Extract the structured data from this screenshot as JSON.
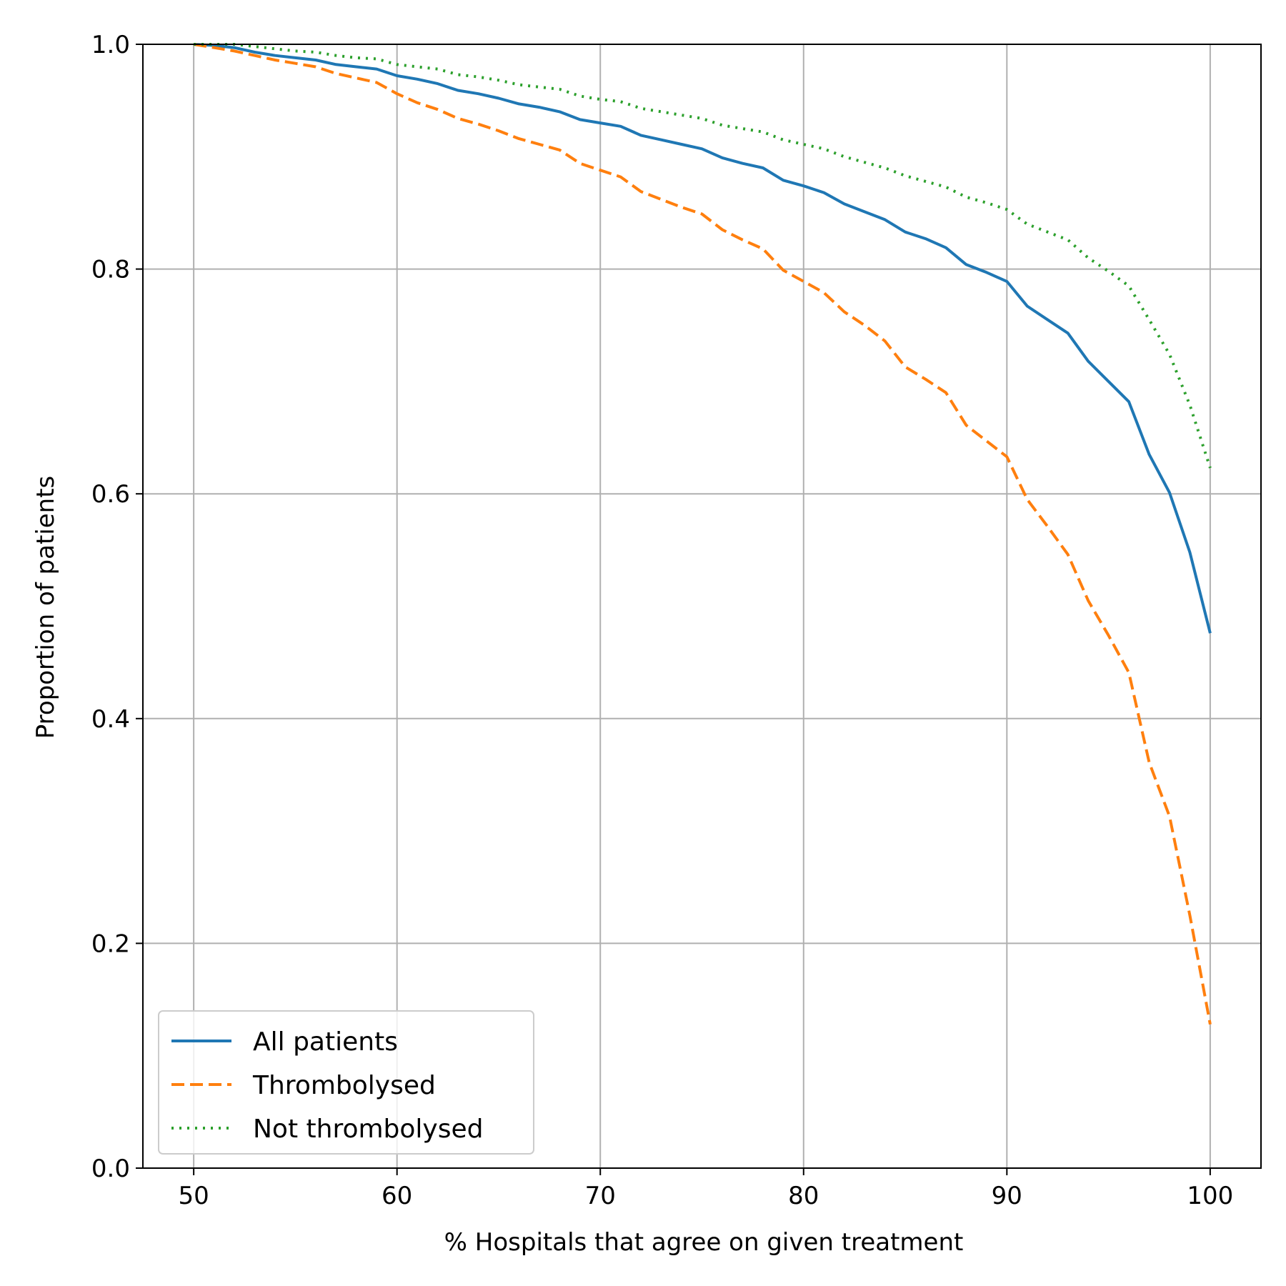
{
  "chart_data": {
    "type": "line",
    "title": "",
    "xlabel": "% Hospitals that agree on given treatment",
    "ylabel": "Proportion of patients",
    "xlim": [
      47.5,
      102.5
    ],
    "ylim": [
      0.0,
      1.0
    ],
    "xticks": [
      "50",
      "60",
      "70",
      "80",
      "90",
      "100"
    ],
    "yticks": [
      "0.0",
      "0.2",
      "0.4",
      "0.6",
      "0.8",
      "1.0"
    ],
    "grid": true,
    "legend_position": "lower-left",
    "x": [
      50,
      51,
      52,
      53,
      54,
      55,
      56,
      57,
      58,
      59,
      60,
      61,
      62,
      63,
      64,
      65,
      66,
      67,
      68,
      69,
      70,
      71,
      72,
      73,
      74,
      75,
      76,
      77,
      78,
      79,
      80,
      81,
      82,
      83,
      84,
      85,
      86,
      87,
      88,
      89,
      90,
      91,
      92,
      93,
      94,
      95,
      96,
      97,
      98,
      99,
      100
    ],
    "series": [
      {
        "name": "All patients",
        "color": "#1f77b4",
        "dash": "solid",
        "values": [
          1.0,
          0.999,
          0.997,
          0.993,
          0.99,
          0.988,
          0.986,
          0.982,
          0.98,
          0.978,
          0.972,
          0.969,
          0.965,
          0.959,
          0.956,
          0.952,
          0.947,
          0.944,
          0.94,
          0.933,
          0.93,
          0.927,
          0.919,
          0.915,
          0.911,
          0.907,
          0.899,
          0.894,
          0.89,
          0.879,
          0.874,
          0.868,
          0.858,
          0.851,
          0.844,
          0.833,
          0.827,
          0.819,
          0.804,
          0.797,
          0.789,
          0.767,
          0.755,
          0.743,
          0.718,
          0.7,
          0.682,
          0.635,
          0.601,
          0.548,
          0.476
        ]
      },
      {
        "name": "Thrombolysed",
        "color": "#ff7f0e",
        "dash": "dashed",
        "values": [
          1.0,
          0.997,
          0.994,
          0.99,
          0.986,
          0.983,
          0.98,
          0.974,
          0.97,
          0.966,
          0.956,
          0.948,
          0.942,
          0.934,
          0.929,
          0.923,
          0.916,
          0.911,
          0.906,
          0.894,
          0.888,
          0.882,
          0.869,
          0.862,
          0.855,
          0.849,
          0.835,
          0.826,
          0.818,
          0.799,
          0.789,
          0.779,
          0.762,
          0.75,
          0.736,
          0.713,
          0.702,
          0.69,
          0.661,
          0.647,
          0.633,
          0.595,
          0.571,
          0.546,
          0.505,
          0.474,
          0.441,
          0.361,
          0.313,
          0.225,
          0.128
        ]
      },
      {
        "name": "Not thrombolysed",
        "color": "#2ca02c",
        "dash": "dotted",
        "values": [
          1.0,
          1.0,
          1.0,
          0.998,
          0.996,
          0.994,
          0.993,
          0.99,
          0.988,
          0.987,
          0.982,
          0.98,
          0.978,
          0.973,
          0.971,
          0.968,
          0.964,
          0.962,
          0.96,
          0.954,
          0.951,
          0.949,
          0.943,
          0.94,
          0.937,
          0.934,
          0.928,
          0.925,
          0.922,
          0.915,
          0.911,
          0.907,
          0.9,
          0.895,
          0.89,
          0.883,
          0.878,
          0.873,
          0.864,
          0.859,
          0.853,
          0.84,
          0.833,
          0.826,
          0.81,
          0.798,
          0.785,
          0.755,
          0.724,
          0.679,
          0.623
        ]
      }
    ]
  }
}
